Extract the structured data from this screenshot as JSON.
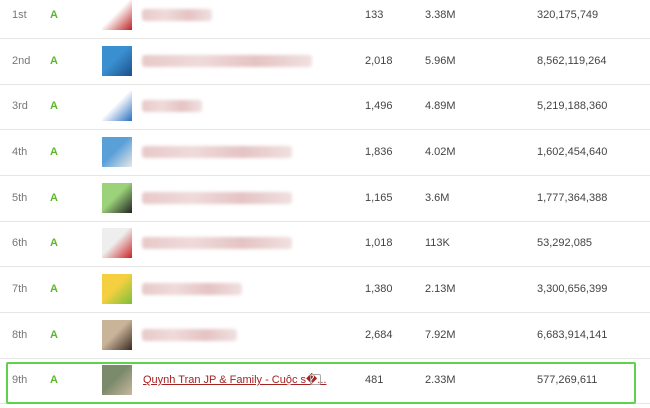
{
  "table": {
    "rows": [
      {
        "rank": "1st",
        "grade": "A",
        "uploads": "133",
        "subscribers": "3.38M",
        "views": "320,175,749"
      },
      {
        "rank": "2nd",
        "grade": "A",
        "uploads": "2,018",
        "subscribers": "5.96M",
        "views": "8,562,119,264"
      },
      {
        "rank": "3rd",
        "grade": "A",
        "uploads": "1,496",
        "subscribers": "4.89M",
        "views": "5,219,188,360"
      },
      {
        "rank": "4th",
        "grade": "A",
        "uploads": "1,836",
        "subscribers": "4.02M",
        "views": "1,602,454,640"
      },
      {
        "rank": "5th",
        "grade": "A",
        "uploads": "1,165",
        "subscribers": "3.6M",
        "views": "1,777,364,388"
      },
      {
        "rank": "6th",
        "grade": "A",
        "uploads": "1,018",
        "subscribers": "113K",
        "views": "53,292,085"
      },
      {
        "rank": "7th",
        "grade": "A",
        "uploads": "1,380",
        "subscribers": "2.13M",
        "views": "3,300,656,399"
      },
      {
        "rank": "8th",
        "grade": "A",
        "uploads": "2,684",
        "subscribers": "7.92M",
        "views": "6,683,914,141"
      },
      {
        "rank": "9th",
        "grade": "A",
        "name": "Quynh Tran JP & Family - Cuộc s�...",
        "uploads": "481",
        "subscribers": "2.33M",
        "views": "577,269,611"
      }
    ]
  }
}
